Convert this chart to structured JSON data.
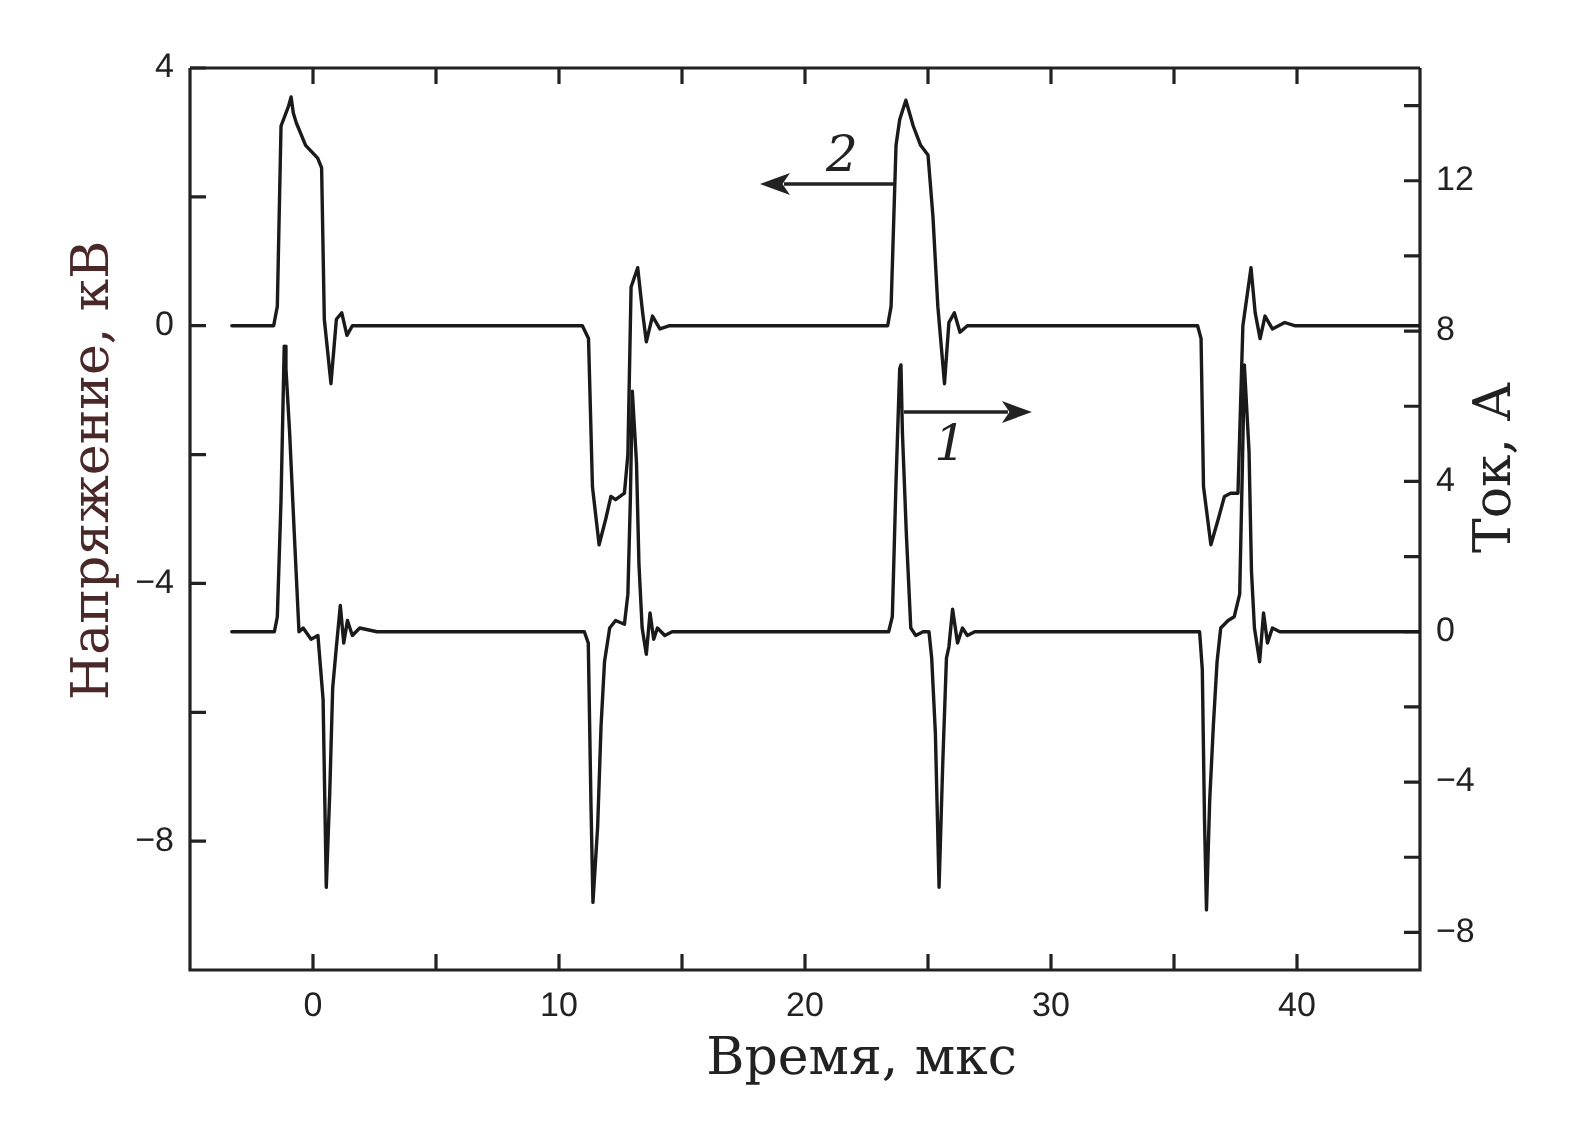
{
  "chart_data": {
    "type": "line",
    "xlabel": "Время, мкс",
    "ylabel": "Напряжение, кВ",
    "y2label": "Ток, А",
    "xlim": [
      -5,
      45
    ],
    "xticks": [
      0,
      {
        "value": 5,
        "label": null
      },
      10,
      {
        "value": 15,
        "label": null
      },
      20,
      {
        "value": 25,
        "label": null
      },
      30,
      {
        "value": 35,
        "label": null
      },
      40
    ],
    "ylim": [
      -10,
      4
    ],
    "yticks": [
      {
        "value": -8,
        "label": "−8"
      },
      {
        "value": -6,
        "label": null
      },
      {
        "value": -4,
        "label": "−4"
      },
      {
        "value": -2,
        "label": null
      },
      0,
      {
        "value": 2,
        "label": null
      },
      4
    ],
    "y2lim": [
      -9,
      15
    ],
    "y2ticks": [
      {
        "value": -8,
        "label": "−8"
      },
      {
        "value": -6,
        "label": null
      },
      {
        "value": -4,
        "label": "−4"
      },
      {
        "value": -2,
        "label": null
      },
      0,
      {
        "value": 2,
        "label": null
      },
      4,
      {
        "value": 6,
        "label": null
      },
      8,
      {
        "value": 10,
        "label": null
      },
      12,
      {
        "value": 14,
        "label": null
      }
    ],
    "marker": "none",
    "line_style": "solid",
    "legend": "top",
    "series": [
      {
        "name": "1",
        "color": "#1a1a1a",
        "axis": "y2",
        "x": [
          -3.3,
          -1.57,
          -1.45,
          -1.3,
          -1.17,
          -1.1,
          -0.95,
          -0.76,
          -0.57,
          -0.4,
          -0.08,
          0.2,
          0.41,
          0.54,
          0.68,
          0.8,
          0.95,
          1.11,
          1.25,
          1.4,
          1.6,
          1.9,
          2.6,
          11.03,
          11.19,
          11.3,
          11.38,
          11.57,
          11.71,
          11.85,
          12.06,
          12.3,
          12.66,
          12.8,
          12.9,
          12.98,
          13.15,
          13.25,
          13.38,
          13.55,
          13.7,
          13.85,
          14.0,
          14.3,
          14.6,
          23.4,
          23.55,
          23.7,
          23.85,
          23.9,
          23.96,
          24.12,
          24.3,
          24.5,
          24.8,
          25.04,
          25.15,
          25.3,
          25.45,
          25.6,
          25.75,
          25.85,
          26.0,
          26.2,
          26.4,
          26.6,
          26.9,
          36.04,
          36.15,
          36.24,
          36.32,
          36.45,
          36.6,
          36.75,
          36.9,
          37.2,
          37.45,
          37.67,
          37.78,
          37.86,
          38.05,
          38.15,
          38.27,
          38.48,
          38.64,
          38.8,
          39.0,
          39.3,
          45
        ],
        "values": [
          0,
          0,
          0.4,
          3.5,
          7.6,
          7.0,
          5.3,
          2.6,
          0,
          0.1,
          -0.2,
          -0.1,
          -1.8,
          -6.8,
          -4.3,
          -1.5,
          -0.4,
          0.7,
          -0.3,
          0.3,
          -0.1,
          0.1,
          0,
          0,
          -0.3,
          -4.6,
          -7.2,
          -5.2,
          -2.5,
          -0.8,
          0.1,
          0.3,
          0.2,
          1.0,
          3.5,
          6.4,
          4.5,
          1.8,
          0.1,
          -0.6,
          0.5,
          -0.2,
          0.1,
          -0.1,
          0,
          0,
          0.4,
          4.0,
          7.0,
          7.1,
          5.3,
          2.6,
          0.1,
          -0.1,
          0,
          0,
          -0.7,
          -2.7,
          -6.8,
          -3.5,
          -0.7,
          -0.4,
          0.6,
          -0.3,
          0.1,
          -0.1,
          0,
          0,
          -1.0,
          -5.0,
          -7.4,
          -4.5,
          -2.5,
          -0.8,
          0.1,
          0.3,
          0.4,
          1.0,
          4.4,
          7.1,
          4.8,
          1.6,
          0.1,
          -0.8,
          0.5,
          -0.3,
          0.1,
          0,
          0
        ]
      },
      {
        "name": "2",
        "color": "#1a1a1a",
        "x": [
          -3.3,
          -1.6,
          -1.45,
          -1.3,
          -1.0,
          -0.89,
          -0.8,
          -0.68,
          -0.3,
          0.19,
          0.35,
          0.46,
          0.73,
          0.95,
          1.17,
          1.38,
          1.6,
          10.95,
          11.2,
          11.36,
          11.63,
          11.9,
          12.11,
          12.3,
          12.66,
          12.8,
          12.93,
          13.2,
          13.4,
          13.55,
          13.8,
          14.1,
          14.5,
          23.36,
          23.5,
          23.7,
          23.85,
          24.1,
          24.4,
          24.7,
          25.0,
          25.2,
          25.4,
          25.67,
          25.85,
          26.07,
          26.3,
          26.6,
          35.96,
          36.1,
          36.2,
          36.5,
          36.8,
          37.05,
          37.3,
          37.6,
          37.8,
          38.13,
          38.3,
          38.5,
          38.7,
          39.0,
          39.5,
          39.9,
          45
        ],
        "values": [
          0,
          0,
          0.3,
          3.1,
          3.4,
          3.55,
          3.3,
          3.15,
          2.8,
          2.6,
          2.45,
          0.1,
          -0.9,
          0.1,
          0.2,
          -0.15,
          0,
          0,
          -0.2,
          -2.5,
          -3.4,
          -3.0,
          -2.65,
          -2.7,
          -2.6,
          -2.0,
          0.6,
          0.9,
          0.2,
          -0.25,
          0.15,
          -0.05,
          0,
          0,
          0.3,
          2.8,
          3.2,
          3.5,
          3.1,
          2.8,
          2.65,
          1.7,
          0.3,
          -0.9,
          0.05,
          0.2,
          -0.1,
          0,
          0,
          -0.2,
          -2.5,
          -3.4,
          -3.0,
          -2.65,
          -2.6,
          -2.6,
          0,
          0.9,
          0.2,
          -0.2,
          0.15,
          -0.05,
          0.05,
          0,
          0
        ]
      }
    ]
  }
}
